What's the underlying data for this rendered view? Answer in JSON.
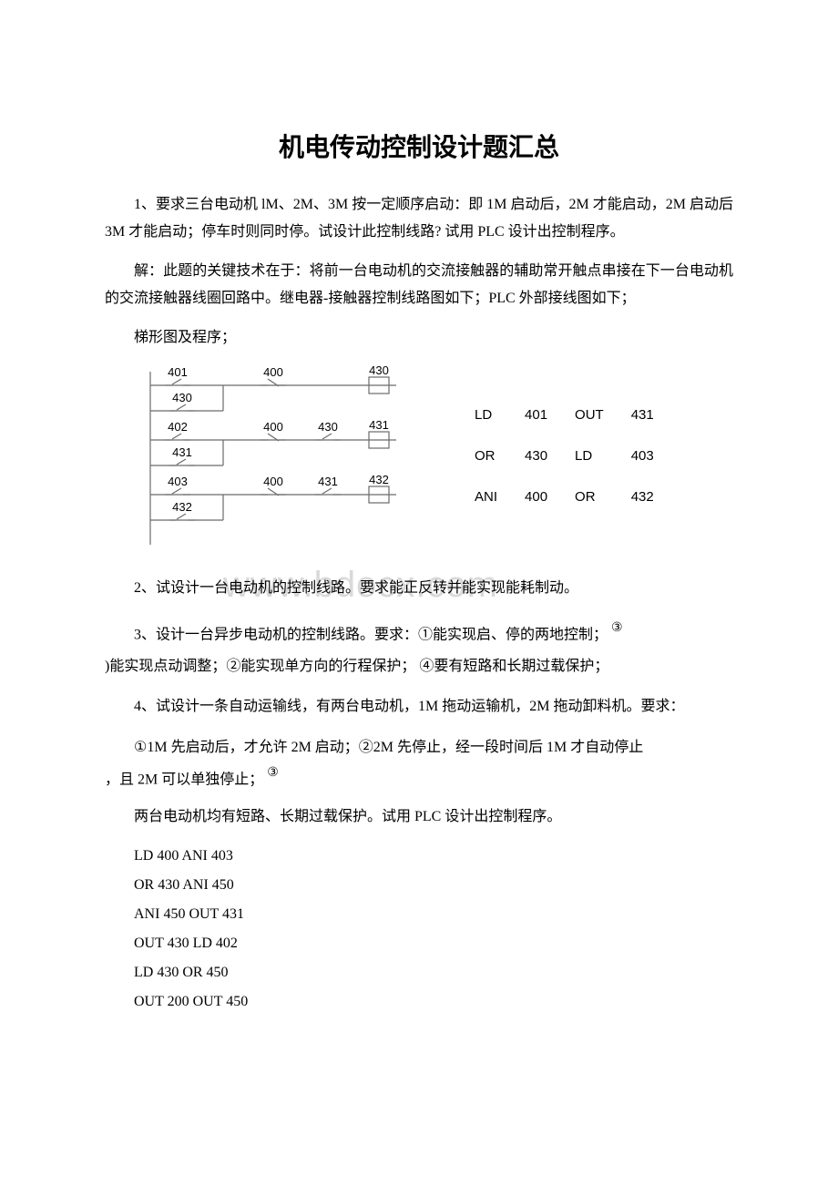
{
  "title": "机电传动控制设计题汇总",
  "p1": "1、要求三台电动机 lM、2M、3M 按一定顺序启动：即 1M 启动后，2M 才能启动，2M 启动后 3M 才能启动；停车时则同时停。试设计此控制线路? 试用 PLC 设计出控制程序。",
  "p2": "解：此题的关键技术在于：将前一台电动机的交流接触器的辅助常开触点串接在下一台电动机的交流接触器线圈回路中。继电器-接触器控制线路图如下；PLC 外部接线图如下；",
  "p3": "梯形图及程序；",
  "ladder": {
    "rungs": [
      {
        "c1": "401",
        "c2": "400",
        "c3": "",
        "out": "430",
        "seal": "430"
      },
      {
        "c1": "402",
        "c2": "400",
        "c3": "430",
        "out": "431",
        "seal": "431"
      },
      {
        "c1": "403",
        "c2": "400",
        "c3": "431",
        "out": "432",
        "seal": "432"
      }
    ],
    "line_color": "#6b6b6b",
    "text_color": "#000000",
    "font_size": 13
  },
  "codeTable": {
    "rows": [
      [
        "LD",
        "401",
        "OUT",
        "431"
      ],
      [
        "OR",
        "430",
        "LD",
        "403"
      ],
      [
        "ANI",
        "400",
        "OR",
        "432"
      ]
    ]
  },
  "watermark": "www.bdocx.com",
  "p4": "2、试设计一台电动机的控制线路。要求能正反转并能实现能耗制动。",
  "p5a": "3、设计一台异步电动机的控制线路。要求：①能实现启、停的两地控制；",
  "p5_sup": "③",
  "p5b": ")能实现点动调整；②能实现单方向的行程保护； ④要有短路和长期过载保护；",
  "p6": "4、试设计一条自动运输线，有两台电动机，1M 拖动运输机，2M 拖动卸料机。要求：",
  "p7a": "①1M 先启动后，才允许 2M 启动；②2M 先停止，经一段时间后 1M 才自动停止",
  "p7b": "，且 2M 可以单独停止；",
  "p7_sup": "③",
  "p8": "两台电动机均有短路、长期过载保护。试用 PLC 设计出控制程序。",
  "code": [
    "LD 400 ANI 403",
    "OR 430 ANI 450",
    "ANI 450 OUT 431",
    "OUT 430 LD 402",
    "LD 430 OR 450",
    "OUT 200 OUT 450"
  ]
}
